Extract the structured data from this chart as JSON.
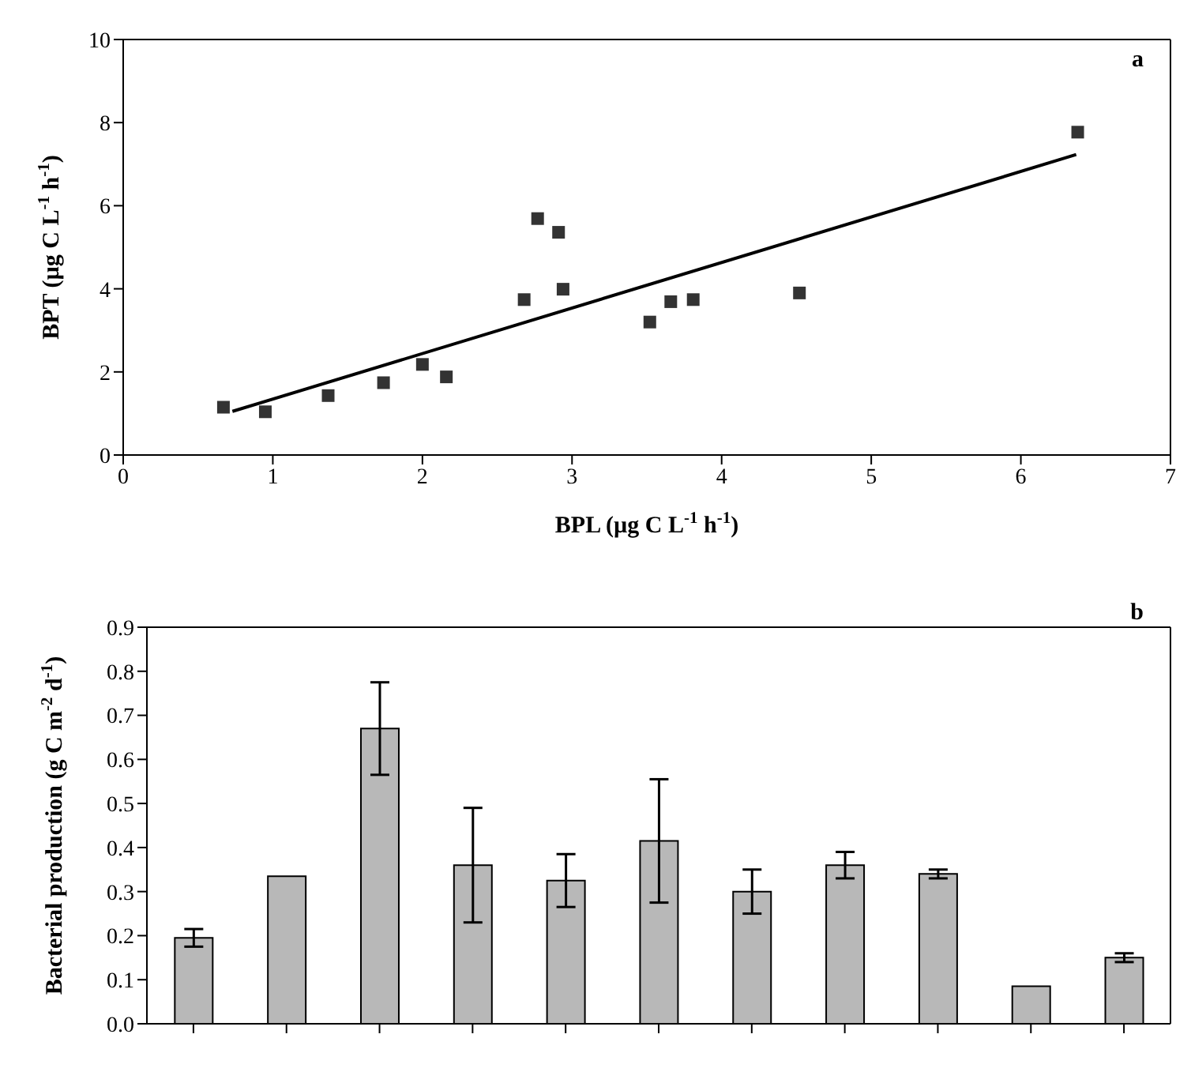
{
  "chart_data": [
    {
      "type": "scatter",
      "xlabel": "BPL (µg C L$^{-1}$ h$^{-1}$)",
      "ylabel": "BPT (µg C L$^{-1}$ h$^{-1}$)",
      "xlim": [
        0,
        7
      ],
      "xticks": [
        0,
        1,
        2,
        3,
        4,
        5,
        6,
        7
      ],
      "ylim": [
        0,
        10
      ],
      "yticks": [
        0,
        2,
        4,
        6,
        8,
        10
      ],
      "annotations": [
        "a"
      ],
      "series": [
        {
          "type": "scatter",
          "marker": "square",
          "color": "#333333",
          "x": [
            0.67,
            0.95,
            1.37,
            1.74,
            2.0,
            2.16,
            2.68,
            2.77,
            2.91,
            2.94,
            3.52,
            3.66,
            3.81,
            4.52,
            6.38
          ],
          "values": [
            1.15,
            1.04,
            1.43,
            1.74,
            2.18,
            1.88,
            3.74,
            5.69,
            5.36,
            3.99,
            3.2,
            3.69,
            3.74,
            3.9,
            7.77
          ]
        },
        {
          "type": "line",
          "marker": "none",
          "color": "#000000",
          "x": [
            0.73,
            6.37
          ],
          "values": [
            1.05,
            7.23
          ]
        }
      ]
    },
    {
      "type": "bar",
      "ylabel": "Bacterial production (g C m$^{-2}$ d$^{-1}$)",
      "categories": [
        null,
        null,
        null,
        null,
        null,
        null,
        null,
        null,
        null,
        null,
        null
      ],
      "values": [
        0.195,
        0.335,
        0.67,
        0.36,
        0.325,
        0.415,
        0.3,
        0.36,
        0.34,
        0.085,
        0.15
      ],
      "errors": [
        0.02,
        null,
        0.105,
        0.13,
        0.06,
        0.14,
        0.05,
        0.03,
        0.01,
        null,
        0.01
      ],
      "color": "#b8b8b8",
      "ylim": [
        0,
        0.9
      ],
      "yticks": [
        {
          "value": 0,
          "label": "0.0"
        },
        0.1,
        0.2,
        0.3,
        0.4,
        0.5,
        0.6,
        0.7,
        0.8,
        0.9
      ],
      "annotations": [
        "b"
      ]
    }
  ]
}
